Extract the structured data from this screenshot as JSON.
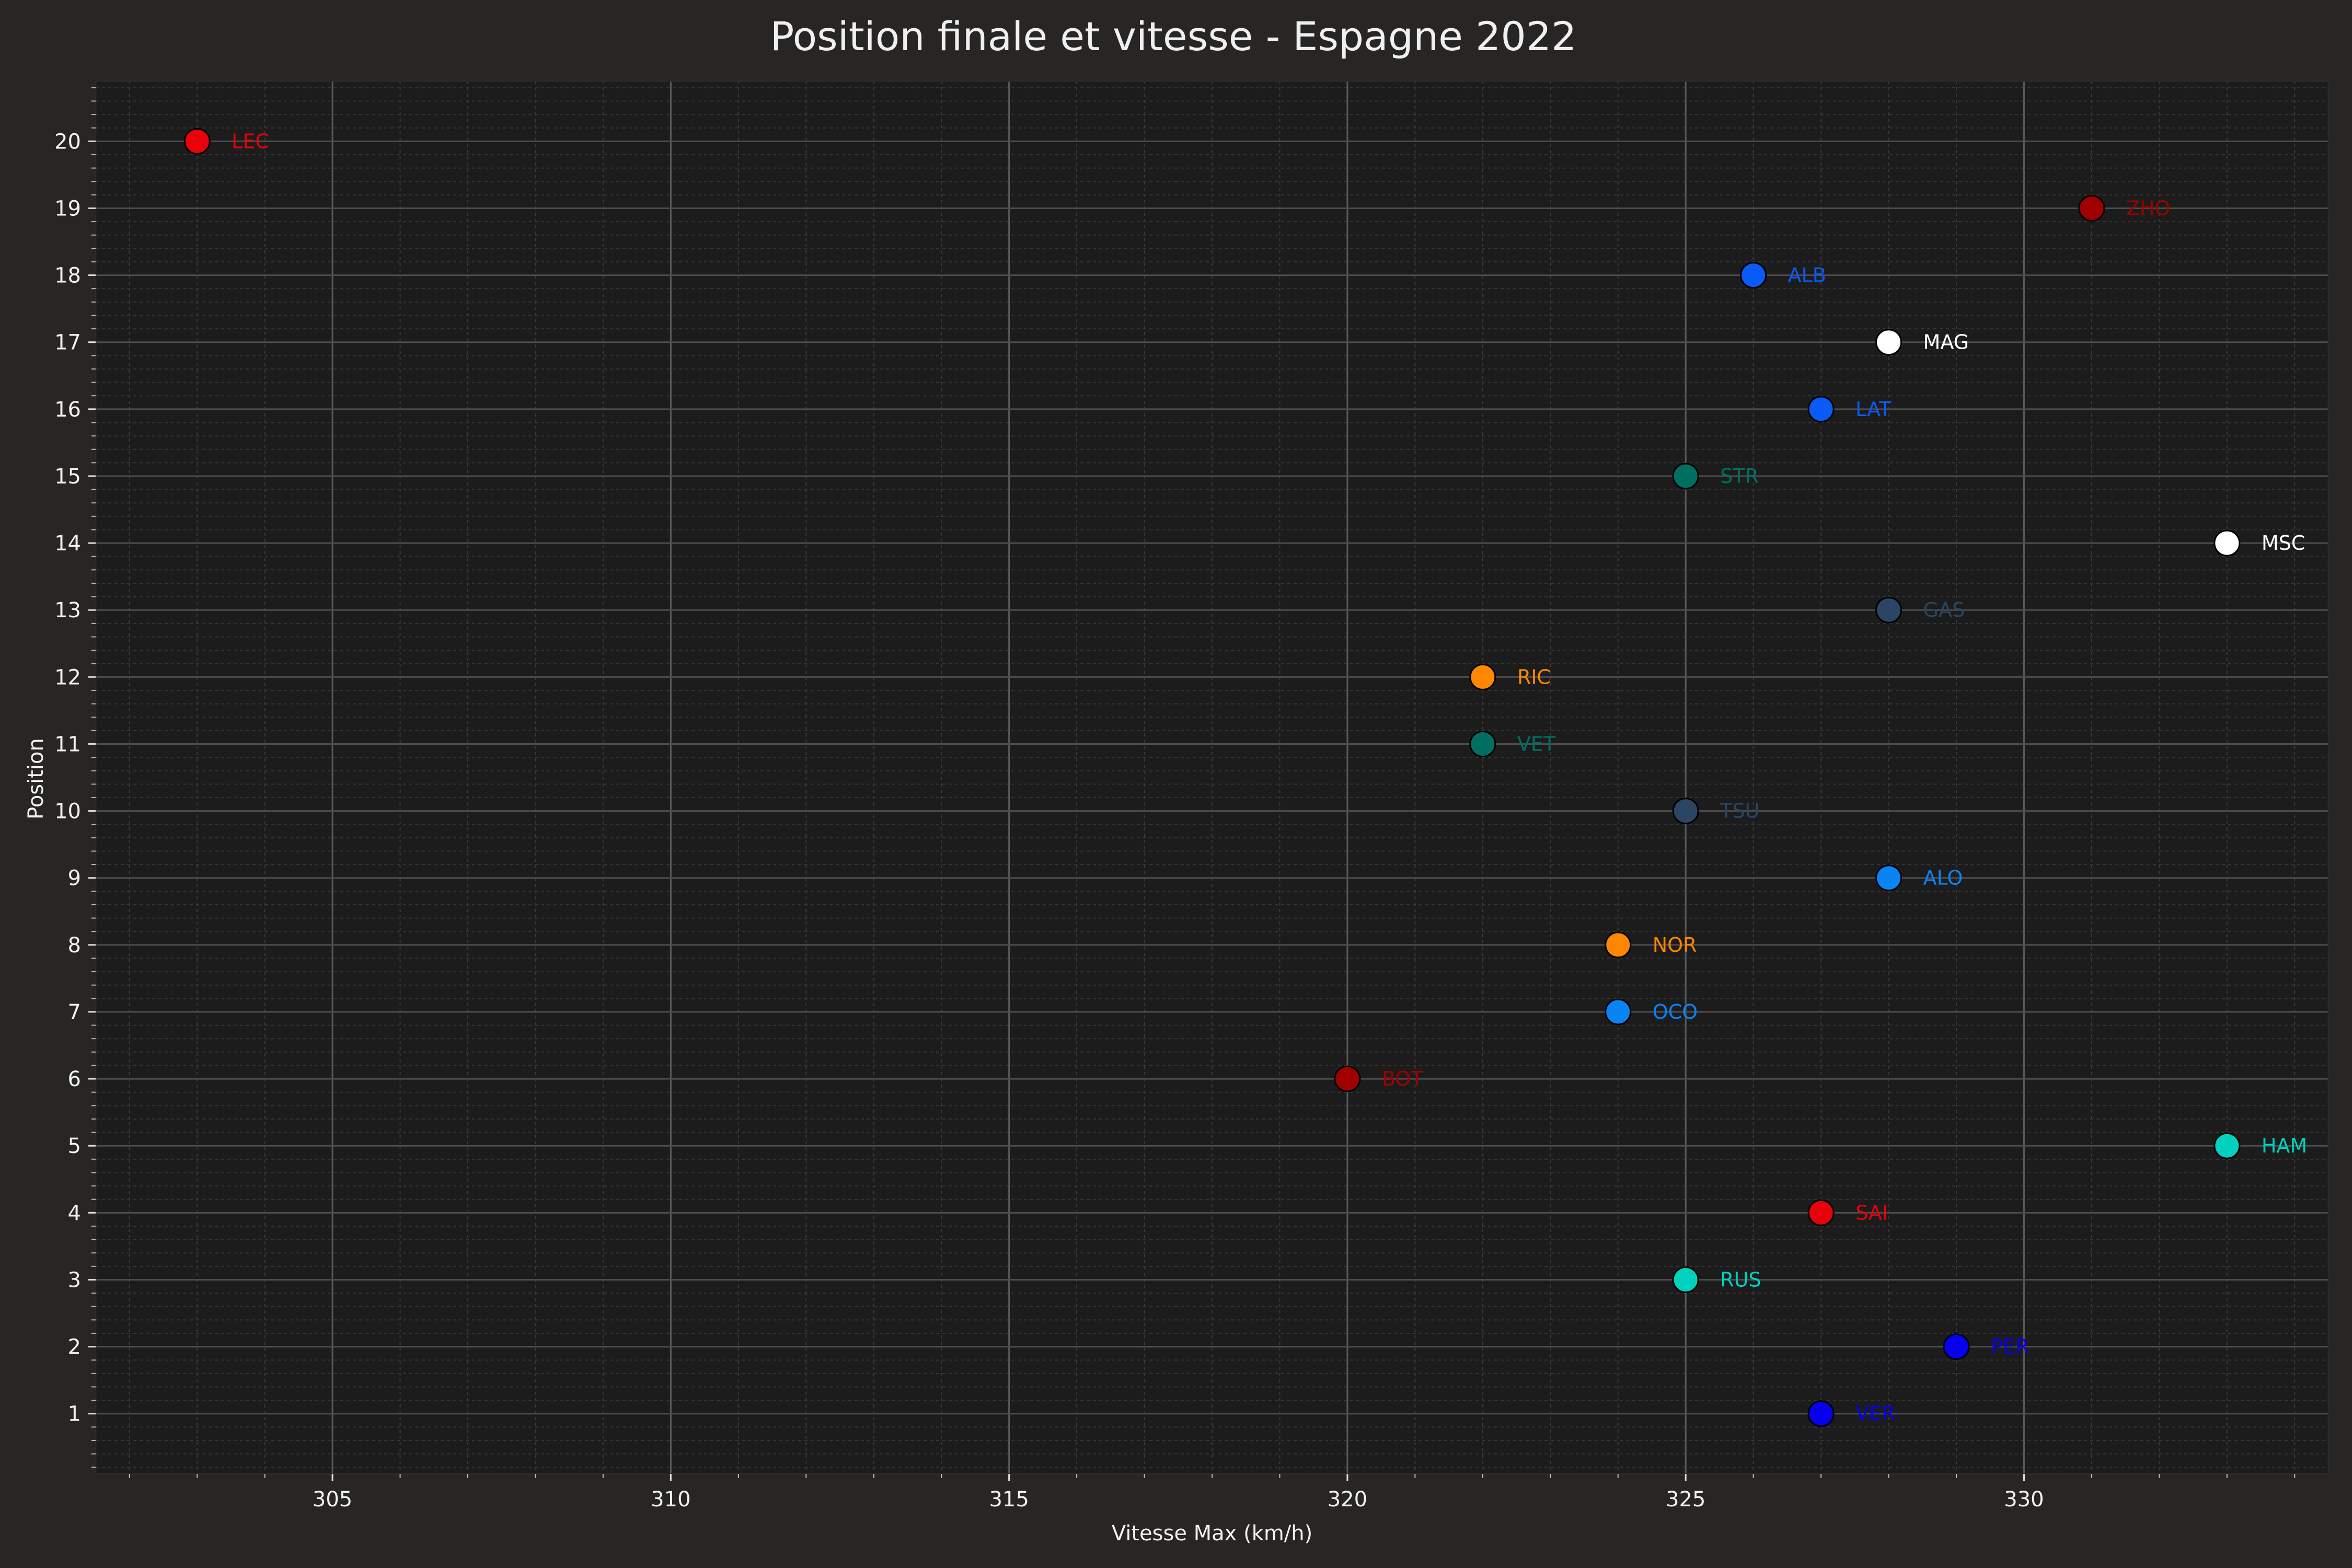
{
  "chart_data": {
    "type": "scatter",
    "title": "Position finale et vitesse - Espagne 2022",
    "xlabel": "Vitesse Max (km/h)",
    "ylabel": "Position",
    "xlim": [
      301.5,
      334.5
    ],
    "ylim": [
      0.1,
      20.9
    ],
    "xticks": [
      "305",
      "310",
      "315",
      "320",
      "325",
      "330"
    ],
    "yticks": [
      "1",
      "2",
      "3",
      "4",
      "5",
      "6",
      "7",
      "8",
      "9",
      "10",
      "11",
      "12",
      "13",
      "14",
      "15",
      "16",
      "17",
      "18",
      "19",
      "20"
    ],
    "grid": true,
    "legend": "none",
    "background": "#282624",
    "plot_background": "#1c1c1c",
    "points": [
      {
        "driver": "LEC",
        "x": 303,
        "y": 20,
        "color": "#e8000b"
      },
      {
        "driver": "ZHO",
        "x": 331,
        "y": 19,
        "color": "#a00000"
      },
      {
        "driver": "ALB",
        "x": 326,
        "y": 18,
        "color": "#0a5bf5"
      },
      {
        "driver": "MAG",
        "x": 328,
        "y": 17,
        "color": "#ffffff"
      },
      {
        "driver": "LAT",
        "x": 327,
        "y": 16,
        "color": "#0a5bf5"
      },
      {
        "driver": "STR",
        "x": 325,
        "y": 15,
        "color": "#006f62"
      },
      {
        "driver": "MSC",
        "x": 333,
        "y": 14,
        "color": "#ffffff"
      },
      {
        "driver": "GAS",
        "x": 328,
        "y": 13,
        "color": "#2b4562"
      },
      {
        "driver": "RIC",
        "x": 322,
        "y": 12,
        "color": "#ff8700"
      },
      {
        "driver": "VET",
        "x": 322,
        "y": 11,
        "color": "#006f62"
      },
      {
        "driver": "TSU",
        "x": 325,
        "y": 10,
        "color": "#2b4562"
      },
      {
        "driver": "ALO",
        "x": 328,
        "y": 9,
        "color": "#0a84f5"
      },
      {
        "driver": "NOR",
        "x": 324,
        "y": 8,
        "color": "#ff8700"
      },
      {
        "driver": "OCO",
        "x": 324,
        "y": 7,
        "color": "#0a84f5"
      },
      {
        "driver": "BOT",
        "x": 320,
        "y": 6,
        "color": "#a00000"
      },
      {
        "driver": "HAM",
        "x": 333,
        "y": 5,
        "color": "#00d2be"
      },
      {
        "driver": "SAI",
        "x": 327,
        "y": 4,
        "color": "#e8000b"
      },
      {
        "driver": "RUS",
        "x": 325,
        "y": 3,
        "color": "#00d2be"
      },
      {
        "driver": "PER",
        "x": 329,
        "y": 2,
        "color": "#0600ef"
      },
      {
        "driver": "VER",
        "x": 327,
        "y": 1,
        "color": "#0600ef"
      }
    ]
  }
}
